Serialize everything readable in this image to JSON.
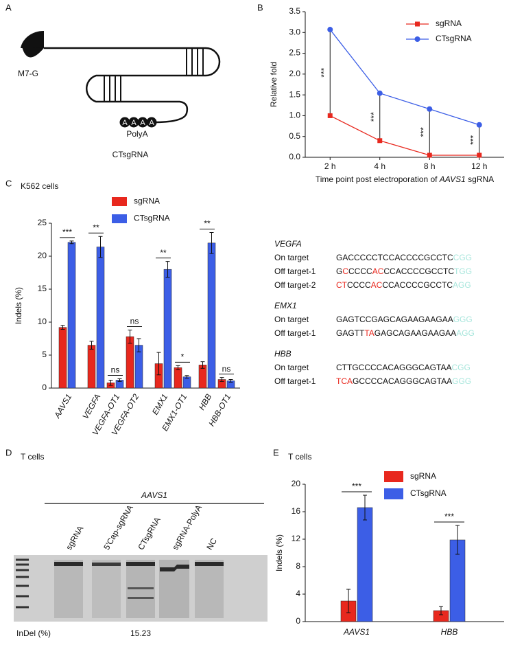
{
  "diagram": {
    "panel": "A",
    "cap": "M7-G",
    "polya_letters": [
      "A",
      "A",
      "A",
      "A"
    ],
    "polya": "PolyA",
    "name": "CTsgRNA"
  },
  "chart_data": [
    {
      "type": "line",
      "panel": "B",
      "ylabel": "Relative fold",
      "xlabel_parts": [
        "Time point post electroporation of ",
        "AAVS1",
        " sgRNA"
      ],
      "categories": [
        "2 h",
        "4 h",
        "8 h",
        "12 h"
      ],
      "series": [
        {
          "name": "sgRNA",
          "color": "#e8281e",
          "values": [
            1.0,
            0.4,
            0.05,
            0.05
          ]
        },
        {
          "name": "CTsgRNA",
          "color": "#3c5ee6",
          "values": [
            3.07,
            1.54,
            1.16,
            0.78
          ]
        }
      ],
      "ylim": [
        0,
        3.5
      ],
      "yticks": [
        {
          "value": 0,
          "label": "0.0"
        },
        {
          "value": 0.5,
          "label": "0.5"
        },
        {
          "value": 1,
          "label": "1.0"
        },
        {
          "value": 1.5,
          "label": "1.5"
        },
        {
          "value": 2,
          "label": "2.0"
        },
        {
          "value": 2.5,
          "label": "2.5"
        },
        {
          "value": 3,
          "label": "3.0"
        },
        {
          "value": 3.5,
          "label": "3.5"
        }
      ],
      "annotations": [
        "***",
        "***",
        "***",
        "***"
      ]
    },
    {
      "type": "bar",
      "panel": "C",
      "subtitle": "K562 cells",
      "ylabel": "Indels (%)",
      "categories": [
        "AAVS1",
        "VEGFA",
        "VEGFA-OT1",
        "VEGFA-OT2",
        "EMX1",
        "EMX1-OT1",
        "HBB",
        "HBB-OT1"
      ],
      "series": [
        {
          "name": "sgRNA",
          "color": "#e8281e",
          "values": [
            9.2,
            6.5,
            0.8,
            7.8,
            3.7,
            3.1,
            3.5,
            1.3
          ],
          "errors": [
            0.3,
            0.6,
            0.4,
            1.0,
            1.7,
            0.3,
            0.5,
            0.3
          ]
        },
        {
          "name": "CTsgRNA",
          "color": "#3c5ee6",
          "values": [
            22.1,
            21.4,
            1.2,
            6.5,
            18.0,
            1.7,
            22.0,
            1.1
          ],
          "errors": [
            0.2,
            1.6,
            0.2,
            1.0,
            1.2,
            0.2,
            1.6,
            0.2
          ]
        }
      ],
      "ylim": [
        0,
        25
      ],
      "yticks": [
        0,
        5,
        10,
        15,
        20,
        25
      ],
      "annotations": [
        "***",
        "**",
        "ns",
        "ns",
        "**",
        "*",
        "**",
        "ns"
      ]
    },
    {
      "type": "bar",
      "panel": "E",
      "subtitle": "T cells",
      "ylabel": "Indels (%)",
      "categories": [
        "AAVS1",
        "HBB"
      ],
      "series": [
        {
          "name": "sgRNA",
          "color": "#e8281e",
          "values": [
            3.0,
            1.6
          ],
          "errors": [
            1.7,
            0.6
          ]
        },
        {
          "name": "CTsgRNA",
          "color": "#3c5ee6",
          "values": [
            16.6,
            11.9
          ],
          "errors": [
            1.8,
            2.1
          ]
        }
      ],
      "ylim": [
        0,
        20
      ],
      "yticks": [
        0,
        4,
        8,
        12,
        16,
        20
      ],
      "annotations": [
        "***",
        "***"
      ]
    }
  ],
  "sequences": {
    "groups": [
      {
        "gene": "VEGFA",
        "rows": [
          {
            "label": "On target",
            "segments": [
              {
                "text": "GACCCCCTCCACCCCGCCTC"
              }
            ],
            "pam": "CGG"
          },
          {
            "label": "Off target-1",
            "segments": [
              {
                "text": "G"
              },
              {
                "text": "C",
                "mismatch": true
              },
              {
                "text": "CCCC"
              },
              {
                "text": "AC",
                "mismatch": true
              },
              {
                "text": "CCACCCCGCCTC"
              }
            ],
            "pam": "TGG"
          },
          {
            "label": "Off target-2",
            "segments": [
              {
                "text": "CT",
                "mismatch": true
              },
              {
                "text": "CCCC"
              },
              {
                "text": "AC",
                "mismatch": true
              },
              {
                "text": "CCACCCCGCCTC"
              }
            ],
            "pam": "AGG"
          }
        ]
      },
      {
        "gene": "EMX1",
        "rows": [
          {
            "label": "On target",
            "segments": [
              {
                "text": "GAGTCCGAGCAGAAGAAGAA"
              }
            ],
            "pam": "GGG"
          },
          {
            "label": "Off target-1",
            "segments": [
              {
                "text": "GAGTT"
              },
              {
                "text": "TA",
                "mismatch": true
              },
              {
                "text": "GAGCAGAAGAAGAA"
              }
            ],
            "pam": "AGG"
          }
        ]
      },
      {
        "gene": "HBB",
        "rows": [
          {
            "label": "On target",
            "segments": [
              {
                "text": "CTTGCCCCACAGGGCAGTAA"
              }
            ],
            "pam": "CGG"
          },
          {
            "label": "Off target-1",
            "segments": [
              {
                "text": "TCA",
                "mismatch": true
              },
              {
                "text": "GCCCCACAGGGCAGTAA"
              }
            ],
            "pam": "GGG"
          }
        ]
      }
    ]
  },
  "gel": {
    "panel": "D",
    "subtitle": "T cells",
    "target": "AAVS1",
    "lanes": [
      "sgRNA",
      "5'Cap-sgRNA",
      "CTsgRNA",
      "sgRNA-PolyA",
      "NC"
    ],
    "indel_label": "InDel (%)",
    "indel_value": 15.23
  }
}
